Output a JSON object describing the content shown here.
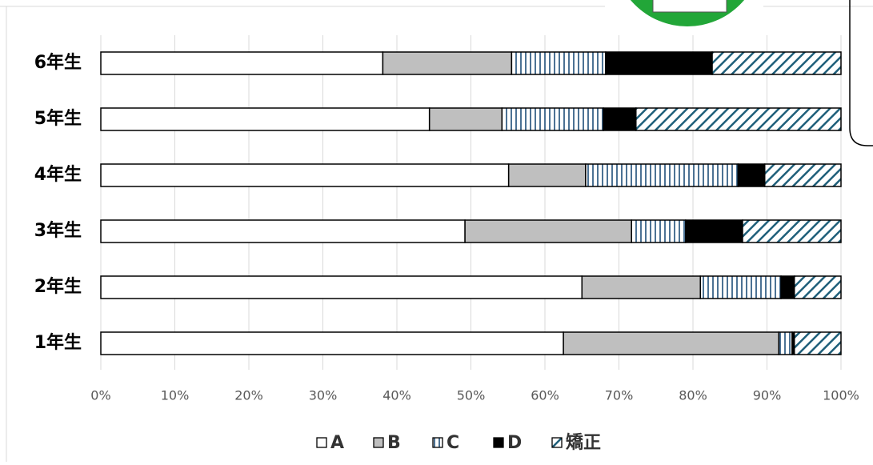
{
  "chart_data": {
    "type": "stacked-bar-horizontal",
    "categories": [
      "6年生",
      "5年生",
      "4年生",
      "3年生",
      "2年生",
      "1年生"
    ],
    "series": [
      {
        "name": "A",
        "color": "#ffffff",
        "values": [
          38.1,
          44.4,
          55.1,
          49.2,
          65.0,
          62.5
        ]
      },
      {
        "name": "B",
        "color": "#bfbfbf",
        "values": [
          17.4,
          9.8,
          10.4,
          22.5,
          16.0,
          29.1
        ]
      },
      {
        "name": "C",
        "color": "#1f4e79",
        "pattern": "vertical",
        "values": [
          12.7,
          13.7,
          20.6,
          7.3,
          10.9,
          1.8
        ]
      },
      {
        "name": "D",
        "color": "#000000",
        "values": [
          14.4,
          4.4,
          3.6,
          7.7,
          1.8,
          0.3
        ]
      },
      {
        "name": "矯正",
        "color": "#1f5f7a",
        "pattern": "diagonal",
        "values": [
          17.4,
          27.7,
          10.3,
          13.3,
          6.3,
          6.3
        ]
      }
    ],
    "xlim": [
      0,
      100
    ],
    "xticks": [
      {
        "value": 0,
        "label": "0%"
      },
      {
        "value": 10,
        "label": "10%"
      },
      {
        "value": 20,
        "label": "20%"
      },
      {
        "value": 30,
        "label": "30%"
      },
      {
        "value": 40,
        "label": "40%"
      },
      {
        "value": 50,
        "label": "50%"
      },
      {
        "value": 60,
        "label": "60%"
      },
      {
        "value": 70,
        "label": "70%"
      },
      {
        "value": 80,
        "label": "80%"
      },
      {
        "value": 90,
        "label": "90%"
      },
      {
        "value": 100,
        "label": "100%"
      }
    ],
    "grid": true,
    "legend": "bottom"
  }
}
